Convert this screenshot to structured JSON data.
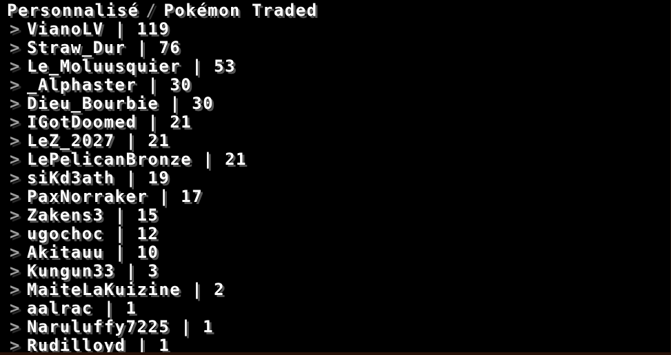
{
  "title": {
    "left": "Personnalisé",
    "separator": "/",
    "right": "Pokémon Traded"
  },
  "scoreboard": {
    "rows": [
      {
        "name": "VianoLV",
        "score": 119
      },
      {
        "name": "Straw_Dur",
        "score": 76
      },
      {
        "name": "Le_Moluusquier",
        "score": 53
      },
      {
        "name": "_Alphaster",
        "score": 30
      },
      {
        "name": "Dieu_Bourbie",
        "score": 30
      },
      {
        "name": "IGotDoomed",
        "score": 21
      },
      {
        "name": "LeZ_2027",
        "score": 21
      },
      {
        "name": "LePelicanBronze",
        "score": 21
      },
      {
        "name": "siKd3ath",
        "score": 19
      },
      {
        "name": "PaxNorraker",
        "score": 17
      },
      {
        "name": "Zakens3",
        "score": 15
      },
      {
        "name": "ugochoc",
        "score": 12
      },
      {
        "name": "Akitauu",
        "score": 10
      },
      {
        "name": "Kungun33",
        "score": 3
      },
      {
        "name": "MaiteLaKuizine",
        "score": 2
      },
      {
        "name": "aalrac",
        "score": 1
      },
      {
        "name": "Naruluffy7225",
        "score": 1
      },
      {
        "name": "Rudilloyd",
        "score": 1
      }
    ]
  },
  "ui": {
    "chevron": ">",
    "separator": "|",
    "colors": {
      "background": "#000000",
      "text": "#ffffff",
      "text_shadow": "#555555",
      "muted": "#9c9c9c",
      "muted_shadow": "#2b2b2b",
      "bottom_bar": "#261108",
      "right_edge": "#1c0e08"
    }
  }
}
